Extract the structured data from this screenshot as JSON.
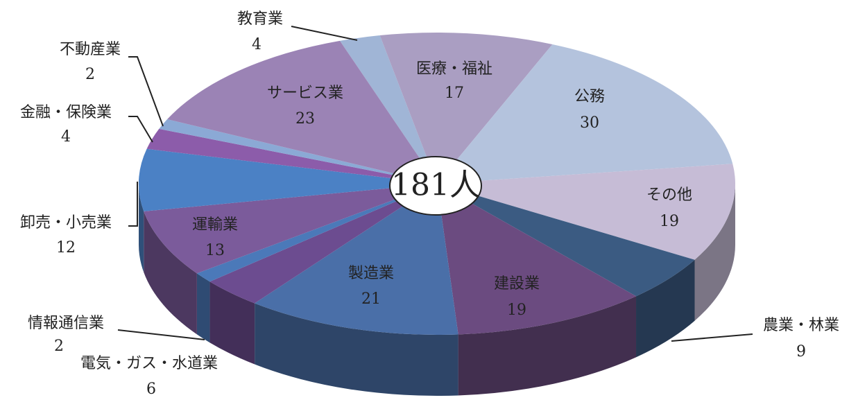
{
  "chart_data": {
    "type": "pie",
    "center_label": "181人",
    "categories": [
      "教育業",
      "医療・福祉",
      "公務",
      "その他",
      "農業・林業",
      "建設業",
      "製造業",
      "電気・ガス・水道業",
      "情報通信業",
      "運輸業",
      "卸売・小売業",
      "金融・保険業",
      "不動産業",
      "サービス業"
    ],
    "values": [
      4,
      17,
      30,
      19,
      9,
      19,
      21,
      6,
      2,
      13,
      12,
      4,
      2,
      23
    ],
    "colors": [
      "#a0b5d6",
      "#aa9ec2",
      "#b4c3dd",
      "#c6bcd6",
      "#3b5b82",
      "#6b4b80",
      "#4a6fa8",
      "#6c4c90",
      "#4b79b9",
      "#7b5b9b",
      "#4b81c5",
      "#8c5caa",
      "#8ba9d5",
      "#9b83b5"
    ]
  }
}
